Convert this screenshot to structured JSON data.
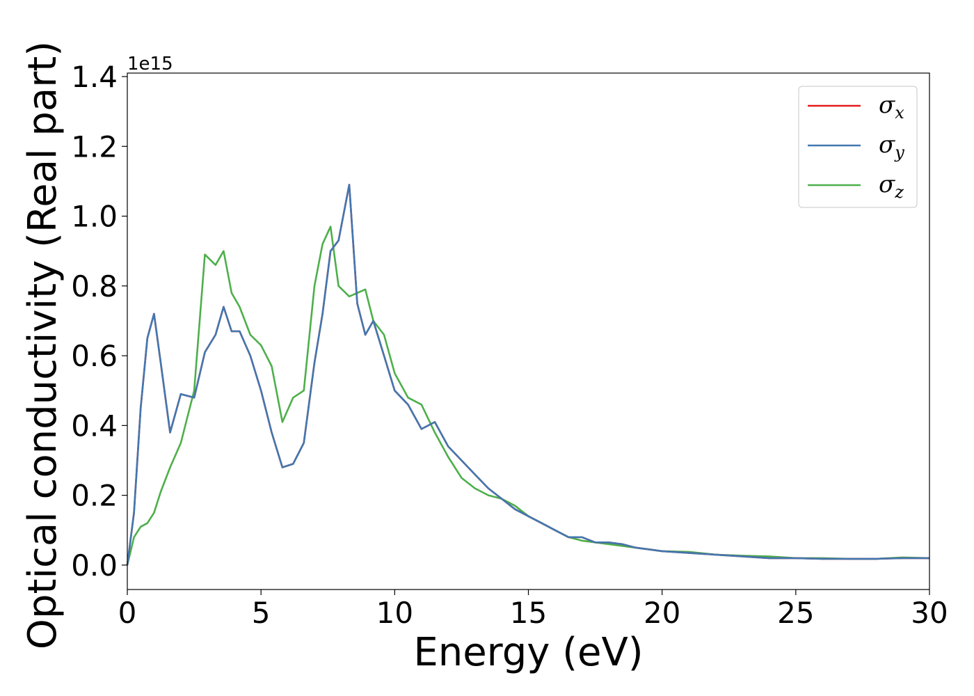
{
  "chart_data": {
    "type": "line",
    "xlabel": "Energy (eV)",
    "ylabel": "Optical conductivity (Real part)",
    "y_offset_text": "1e15",
    "xlim": [
      0,
      30
    ],
    "ylim": [
      -0.07,
      1.41
    ],
    "x_ticks": [
      0,
      5,
      10,
      15,
      20,
      25,
      30
    ],
    "x_tick_labels": [
      "0",
      "5",
      "10",
      "15",
      "20",
      "25",
      "30"
    ],
    "y_ticks": [
      0.0,
      0.2,
      0.4,
      0.6,
      0.8,
      1.0,
      1.2,
      1.4
    ],
    "y_tick_labels": [
      "0.0",
      "0.2",
      "0.4",
      "0.6",
      "0.8",
      "1.0",
      "1.2",
      "1.4"
    ],
    "grid": false,
    "legend_position": "top-right",
    "x": [
      0,
      0.25,
      0.5,
      0.75,
      1.0,
      1.25,
      1.6,
      2.0,
      2.5,
      2.9,
      3.3,
      3.6,
      3.9,
      4.2,
      4.6,
      5.0,
      5.4,
      5.8,
      6.2,
      6.6,
      7.0,
      7.3,
      7.6,
      7.9,
      8.3,
      8.6,
      8.9,
      9.2,
      9.6,
      10.0,
      10.5,
      11.0,
      11.5,
      12.0,
      12.5,
      13.0,
      13.5,
      14.0,
      14.5,
      15.0,
      15.5,
      16.0,
      16.5,
      17.0,
      17.5,
      18.0,
      18.5,
      19.0,
      19.5,
      20.0,
      21.0,
      22.0,
      23.0,
      24.0,
      25.0,
      26.0,
      27.0,
      28.0,
      29.0,
      30.0
    ],
    "series": [
      {
        "name": "σ",
        "name_sub": "x",
        "color": "#e41a1c",
        "values": [
          0.0,
          0.15,
          0.45,
          0.65,
          0.72,
          0.58,
          0.38,
          0.49,
          0.48,
          0.61,
          0.66,
          0.74,
          0.67,
          0.67,
          0.6,
          0.5,
          0.38,
          0.28,
          0.29,
          0.35,
          0.58,
          0.72,
          0.9,
          0.93,
          1.09,
          0.75,
          0.66,
          0.7,
          0.6,
          0.5,
          0.46,
          0.39,
          0.41,
          0.34,
          0.3,
          0.26,
          0.22,
          0.19,
          0.16,
          0.14,
          0.12,
          0.1,
          0.08,
          0.08,
          0.065,
          0.065,
          0.06,
          0.05,
          0.045,
          0.04,
          0.035,
          0.03,
          0.025,
          0.02,
          0.02,
          0.018,
          0.018,
          0.018,
          0.02,
          0.02
        ]
      },
      {
        "name": "σ",
        "name_sub": "y",
        "color": "#4277b0",
        "values": [
          0.0,
          0.15,
          0.45,
          0.65,
          0.72,
          0.58,
          0.38,
          0.49,
          0.48,
          0.61,
          0.66,
          0.74,
          0.67,
          0.67,
          0.6,
          0.5,
          0.38,
          0.28,
          0.29,
          0.35,
          0.58,
          0.72,
          0.9,
          0.93,
          1.09,
          0.75,
          0.66,
          0.7,
          0.6,
          0.5,
          0.46,
          0.39,
          0.41,
          0.34,
          0.3,
          0.26,
          0.22,
          0.19,
          0.16,
          0.14,
          0.12,
          0.1,
          0.08,
          0.08,
          0.065,
          0.065,
          0.06,
          0.05,
          0.045,
          0.04,
          0.035,
          0.03,
          0.025,
          0.02,
          0.02,
          0.018,
          0.018,
          0.018,
          0.02,
          0.02
        ]
      },
      {
        "name": "σ",
        "name_sub": "z",
        "color": "#4daf4a",
        "values": [
          0.0,
          0.08,
          0.11,
          0.12,
          0.15,
          0.21,
          0.28,
          0.35,
          0.5,
          0.89,
          0.86,
          0.9,
          0.78,
          0.74,
          0.66,
          0.63,
          0.57,
          0.41,
          0.48,
          0.5,
          0.8,
          0.92,
          0.97,
          0.8,
          0.77,
          0.78,
          0.79,
          0.7,
          0.66,
          0.55,
          0.48,
          0.46,
          0.38,
          0.31,
          0.25,
          0.22,
          0.2,
          0.19,
          0.17,
          0.14,
          0.12,
          0.1,
          0.08,
          0.07,
          0.065,
          0.06,
          0.055,
          0.05,
          0.045,
          0.04,
          0.038,
          0.03,
          0.027,
          0.025,
          0.02,
          0.02,
          0.018,
          0.018,
          0.022,
          0.02
        ]
      }
    ]
  }
}
